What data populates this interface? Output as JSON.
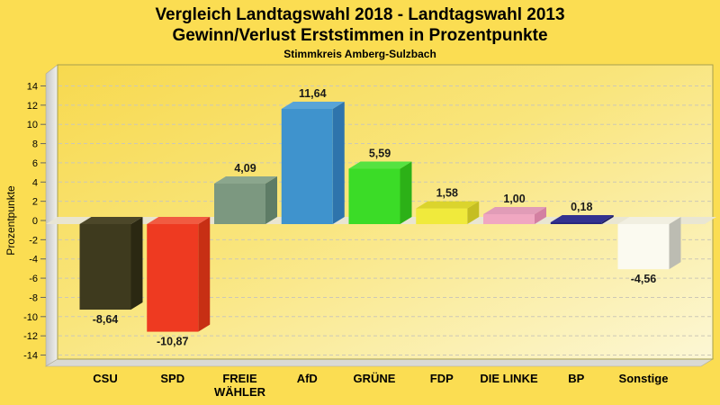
{
  "header": {
    "title_line1": "Vergleich Landtagswahl 2018 - Landtagswahl 2013",
    "title_line2": "Gewinn/Verlust Erststimmen in Prozentpunkte",
    "subtitle": "Stimmkreis Amberg-Sulzbach"
  },
  "colors": {
    "page_background": "#FBDD52",
    "text": "#000000",
    "plot_gradient_start": "#F7D94F",
    "plot_gradient_mid": "#F9E57C",
    "plot_gradient_end": "#FCF7D5",
    "plot_border": "#A79F4D",
    "wall_gradient_start": "#C7C7C5",
    "wall_gradient_end": "#F0F0EE",
    "floor": "#DADAD4",
    "zero_plane": "#E8E5D4",
    "gridline": "#CCC8B6",
    "tick_mark": "#666666"
  },
  "chart_data": {
    "type": "bar",
    "projection": "3d",
    "title": "Vergleich Landtagswahl 2018 - Landtagswahl 2013 — Gewinn/Verlust Erststimmen in Prozentpunkte",
    "subtitle": "Stimmkreis Amberg-Sulzbach",
    "xlabel": "",
    "ylabel": "Prozentpunkte",
    "ylim": [
      -14,
      14
    ],
    "yticks": [
      -14,
      -12,
      -10,
      -8,
      -6,
      -4,
      -2,
      0,
      2,
      4,
      6,
      8,
      10,
      12,
      14
    ],
    "grid": "horizontal dashed",
    "legend": "none",
    "categories": [
      "CSU",
      "SPD",
      "FREIE\nWÄHLER",
      "AfD",
      "GRÜNE",
      "FDP",
      "DIE LINKE",
      "BP",
      "Sonstige"
    ],
    "values": [
      -8.64,
      -10.87,
      4.09,
      11.64,
      5.59,
      1.58,
      1.0,
      0.18,
      -4.56
    ],
    "value_labels": [
      "-8,64",
      "-10,87",
      "4,09",
      "11,64",
      "5,59",
      "1,58",
      "1,00",
      "0,18",
      "-4,56"
    ],
    "bar_colors": [
      {
        "party": "CSU",
        "front": "#3E3A1E",
        "top": "#4C4729",
        "side": "#2B2812"
      },
      {
        "party": "SPD",
        "front": "#EE3A21",
        "top": "#F15B41",
        "side": "#C72F14"
      },
      {
        "party": "FREIE WÄHLER",
        "front": "#7C9880",
        "top": "#8BA68D",
        "side": "#5E7C66"
      },
      {
        "party": "AfD",
        "front": "#3F93CD",
        "top": "#58A4D7",
        "side": "#2E74AC"
      },
      {
        "party": "GRÜNE",
        "front": "#3BDC27",
        "top": "#55E241",
        "side": "#2CB117"
      },
      {
        "party": "FDP",
        "front": "#F0EA3C",
        "top": "#DBD42D",
        "side": "#C5BE22"
      },
      {
        "party": "DIE LINKE",
        "front": "#F0A7C1",
        "top": "#E19CB7",
        "side": "#D380A2"
      },
      {
        "party": "BP",
        "front": "#26267E",
        "top": "#323290",
        "side": "#1C1C60"
      },
      {
        "party": "Sonstige",
        "front": "#FBFAF0",
        "top": "#F1EFE1",
        "side": "#BCBCB2"
      }
    ]
  }
}
